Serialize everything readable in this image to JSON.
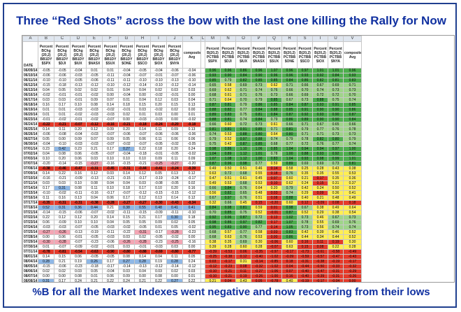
{
  "title": "Three “Red Shots” across the bow with the last one killing the Rally for Now",
  "footer": "%B for all the Market Indexes went negative and now recovering from their lows",
  "columns": [
    "A",
    "B",
    "C",
    "D",
    "E",
    "F",
    "G",
    "H",
    "I",
    "J",
    "K",
    "L",
    "M",
    "N",
    "O",
    "P",
    "Q",
    "R",
    "S",
    "T",
    "U",
    "V",
    "W",
    "X"
  ],
  "date_header": "DATE",
  "left_headers": [
    "Percent BChg (20,2) BB1DY $SPX",
    "Percent BChg (20,2) BB1DY $DJI",
    "Percent BChg (20,2) BB1DY $IUX",
    "Percent BChg (20,2) BB1DY $NASX",
    "Percent BChg (20,2) BB1DY $SUX",
    "Percent BChg (20,2) BB1DY $ONE",
    "Percent BChg (20,2) BB1DY $SCO",
    "Percent BChg (20,2) BB1DY $IOX",
    "Percent BChg (20,2) BB1DY $NYA"
  ],
  "left_avg_header": "composite Avg",
  "right_headers": [
    "Percent B(20,2) PCTBB $SPX",
    "Percent B(20,2) PCTBB $DJI",
    "Percent B(20,2) PCTBB $IUX",
    "Percent B(20,2) PCTBB $NASX",
    "Percent B(20,2) PCTBB $SUX",
    "Percent B(20,2) PCTBB $ONE",
    "Percent B(20,2) PCTBB $SCO",
    "Percent B(20,2) PCTBB $IOX",
    "Percent B(20,2) PCTBB $NYA"
  ],
  "right_avg_header": "composite Avg",
  "dates": [
    "06/09/14",
    "06/10/14",
    "06/11/14",
    "06/12/14",
    "06/13/14",
    "06/16/14",
    "06/17/14",
    "06/18/14",
    "06/19/14",
    "06/20/14",
    "06/23/14",
    "06/24/14",
    "06/25/14",
    "06/26/14",
    "06/27/14",
    "06/30/14",
    "07/01/14",
    "07/02/14",
    "07/03/14",
    "07/07/14",
    "07/08/14",
    "07/09/14",
    "07/10/14",
    "07/11/14",
    "07/14/14",
    "07/15/14",
    "07/16/14",
    "07/17/14",
    "07/18/14",
    "07/21/14",
    "07/22/14",
    "07/23/14",
    "07/24/14",
    "07/25/14",
    "07/28/14",
    "07/29/14",
    "07/30/14",
    "07/31/14",
    "08/01/14",
    "08/04/14",
    "08/05/14",
    "08/06/14",
    "08/07/14",
    "08/08/14"
  ],
  "colors": {
    "green": "#4cae4c",
    "lightgreen": "#9fd48a",
    "yellow": "#ffee55",
    "red": "#e53a2a",
    "pink": "#f4a6b4",
    "blue": "#8fb8e6",
    "darkred": "#c82020"
  },
  "left_values": [
    [
      "-0.05",
      "-0.05",
      "-0.04",
      "0.01",
      "0.01",
      "-0.04",
      "-0.05",
      "-0.04",
      "-0.06",
      "-0.04"
    ],
    [
      "-0.06",
      "-0.06",
      "-0.03",
      "-0.05",
      "-0.11",
      "-0.04",
      "-0.07",
      "-0.01",
      "-0.07",
      "-0.06"
    ],
    [
      "-0.10",
      "-0.10",
      "-0.05",
      "-0.06",
      "-0.11",
      "-0.11",
      "-0.10",
      "-0.10",
      "-0.13",
      "-0.10"
    ],
    [
      "-0.15",
      "-0.18",
      "-0.13",
      "-0.12",
      "-0.10",
      "-0.12",
      "-0.14",
      "-0.10",
      "-0.12",
      "-0.14"
    ],
    [
      "0.04",
      "0.05",
      "0.02",
      "0.02",
      "0.01",
      "0.04",
      "0.04",
      "0.02",
      "0.03",
      "0.03"
    ],
    [
      "-0.02",
      "-0.01",
      "-0.01",
      "-0.02",
      "0.00",
      "-0.04",
      "0.00",
      "-0.02",
      "-0.01",
      "0.00"
    ],
    [
      "0.03",
      "0.03",
      "-0.01",
      "0.09",
      "0.07",
      "0.01",
      "0.04",
      "0.12",
      "0.03",
      "0.04"
    ],
    [
      "0.16",
      "0.17",
      "0.10",
      "0.08",
      "0.14",
      "0.18",
      "0.15",
      "0.20",
      "0.15",
      "0.13"
    ],
    [
      "0.01",
      "0.01",
      "-0.03",
      "-0.03",
      "-0.02",
      "-0.01",
      "0.03",
      "-0.02",
      "0.02",
      "0.00"
    ],
    [
      "0.01",
      "0.01",
      "-0.02",
      "-0.03",
      "-0.03",
      "0.02",
      "0.01",
      "0.03",
      "0.00",
      "0.01"
    ],
    [
      "-0.01",
      "-0.02",
      "-0.01",
      "-0.02",
      "-0.07",
      "0.00",
      "-0.03",
      "-0.03",
      "0.00",
      "-0.02"
    ],
    [
      "-0.22",
      "-0.21",
      "-0.07",
      "-0.12",
      "-0.16",
      "-0.21",
      "-0.18",
      "-0.24",
      "-0.20",
      "-0.18"
    ],
    [
      "0.14",
      "0.11",
      "0.20",
      "0.12",
      "0.09",
      "0.20",
      "0.14",
      "0.11",
      "0.09",
      "0.13"
    ],
    [
      "-0.06",
      "-0.08",
      "-0.04",
      "-0.03",
      "-0.07",
      "-0.06",
      "-0.07",
      "-0.06",
      "-0.06",
      "-0.06"
    ],
    [
      "0.05",
      "0.00",
      "0.09",
      "0.07",
      "0.09",
      "0.05",
      "0.06",
      "0.11",
      "0.06",
      "0.06"
    ],
    [
      "-0.04",
      "-0.10",
      "-0.03",
      "-0.03",
      "-0.07",
      "-0.02",
      "-0.07",
      "-0.05",
      "-0.02",
      "-0.05"
    ],
    [
      "0.23",
      "0.42",
      "0.23",
      "0.21",
      "0.17",
      "0.27",
      "0.22",
      "0.18",
      "0.20",
      "0.24"
    ],
    [
      "0.04",
      "0.08",
      "0.06",
      "-0.05",
      "-0.07",
      "-0.04",
      "-0.18",
      "-0.01",
      "-0.05",
      "-0.02"
    ],
    [
      "0.10",
      "0.20",
      "0.06",
      "0.03",
      "0.10",
      "0.10",
      "0.10",
      "0.09",
      "0.11",
      "0.09"
    ],
    [
      "-0.20",
      "-0.14",
      "-0.15",
      "-0.27",
      "-0.16",
      "-0.15",
      "-0.21",
      "-0.25",
      "-0.27",
      "-0.20"
    ],
    [
      "-0.38",
      "-0.46",
      "-0.47",
      "-0.31",
      "-0.45",
      "-0.31",
      "-0.44",
      "-0.41",
      "-0.24",
      "-0.39"
    ],
    [
      "0.14",
      "0.22",
      "0.16",
      "0.12",
      "0.03",
      "0.14",
      "0.12",
      "0.05",
      "0.13",
      "0.12"
    ],
    [
      "-0.16",
      "-0.21",
      "-0.09",
      "-0.13",
      "-0.21",
      "-0.15",
      "-0.17",
      "-0.19",
      "-0.24",
      "-0.17"
    ],
    [
      "0.03",
      "0.03",
      "0.10",
      "0.08",
      "0.04",
      "0.04",
      "0.03",
      "-0.08",
      "-0.05",
      "0.02"
    ],
    [
      "0.17",
      "0.31",
      "0.08",
      "0.11",
      "0.10",
      "0.18",
      "0.17",
      "0.10",
      "0.20",
      "0.16"
    ],
    [
      "-0.10",
      "-0.02",
      "-0.11",
      "-0.16",
      "-0.17",
      "-0.07",
      "-0.12",
      "-0.15",
      "-0.15",
      "-0.12"
    ],
    [
      "0.11",
      "0.16",
      "0.13",
      "0.04",
      "0.06",
      "0.17",
      "0.12",
      "0.13",
      "0.14",
      "0.12"
    ],
    [
      "-0.35",
      "-0.31",
      "-0.31",
      "-0.38",
      "-0.28",
      "-0.27",
      "-0.27",
      "-0.30",
      "-0.43",
      "-0.34"
    ],
    [
      "0.52",
      "0.31",
      "0.36",
      "0.44",
      "0.21",
      "0.38",
      "0.55",
      "0.48",
      "0.41",
      "0.41"
    ],
    [
      "-0.14",
      "-0.15",
      "-0.06",
      "-0.07",
      "-0.02",
      "-0.11",
      "-0.15",
      "-0.09",
      "-0.11",
      "-0.10"
    ],
    [
      "0.22",
      "0.12",
      "0.12",
      "0.20",
      "0.14",
      "0.15",
      "0.21",
      "0.17",
      "0.30",
      "0.18"
    ],
    [
      "0.06",
      "-0.09",
      "0.10",
      "0.10",
      "0.04",
      "0.05",
      "0.05",
      "0.09",
      "0.02",
      "0.05"
    ],
    [
      "-0.03",
      "-0.03",
      "-0.07",
      "-0.05",
      "-0.03",
      "-0.02",
      "-0.05",
      "0.01",
      "0.05",
      "-0.02"
    ],
    [
      "-0.27",
      "-0.26",
      "-0.13",
      "-0.19",
      "-0.11",
      "-0.22",
      "-0.31",
      "-0.17",
      "-0.28",
      "-0.23"
    ],
    [
      "0.00",
      "0.06",
      "-0.01",
      "-0.05",
      "-0.03",
      "0.03",
      "0.02",
      "-0.05",
      "-0.02",
      "0.00"
    ],
    [
      "-0.30",
      "-0.28",
      "-0.07",
      "-0.23",
      "-0.06",
      "-0.26",
      "-0.28",
      "-0.23",
      "-0.25",
      "-0.16"
    ],
    [
      "0.01",
      "-0.07",
      "-0.09",
      "-0.02",
      "-0.01",
      "0.03",
      "-0.01",
      "-0.03",
      "0.03",
      "0.00"
    ],
    [
      "-0.78",
      "-0.81",
      "-0.54",
      "-0.63",
      "-0.90",
      "-0.80",
      "-0.88",
      "-0.69",
      "-0.80",
      "-0.77"
    ],
    [
      "0.14",
      "0.15",
      "0.06",
      "-0.05",
      "-0.05",
      "0.08",
      "0.14",
      "0.04",
      "0.11",
      "0.05"
    ],
    [
      "0.28",
      "0.21",
      "0.19",
      "0.26",
      "0.17",
      "0.27",
      "0.28",
      "0.19",
      "0.28",
      "0.24"
    ],
    [
      "-0.15",
      "-0.06",
      "-0.23",
      "-0.18",
      "-0.17",
      "-0.14",
      "-0.13",
      "-0.12",
      "-0.14",
      "-0.12"
    ],
    [
      "0.02",
      "0.02",
      "0.03",
      "0.05",
      "-0.04",
      "0.03",
      "0.04",
      "0.03",
      "0.02",
      "0.03"
    ],
    [
      "0.00",
      "0.00",
      "0.08",
      "0.01",
      "0.06",
      "0.09",
      "0.00",
      "0.08",
      "0.00",
      "0.01"
    ],
    [
      "0.31",
      "0.17",
      "0.24",
      "0.21",
      "0.22",
      "0.24",
      "0.21",
      "0.22",
      "0.27",
      "0.22"
    ]
  ],
  "right_values": [
    [
      "0.96",
      "0.96",
      "0.86",
      "0.96",
      "1.07",
      "0.96",
      "0.97",
      "1.01",
      "1.01",
      "0.96"
    ],
    [
      "0.93",
      "0.90",
      "0.84",
      "0.90",
      "0.96",
      "0.96",
      "0.93",
      "0.92",
      "0.84",
      "0.93"
    ],
    [
      "0.85",
      "0.79",
      "0.82",
      "0.85",
      "0.85",
      "0.84",
      "0.86",
      "0.82",
      "0.81",
      "0.83"
    ],
    [
      "0.65",
      "0.58",
      "0.69",
      "0.73",
      "0.62",
      "0.71",
      "0.66",
      "0.67",
      "0.69",
      "0.71"
    ],
    [
      "0.69",
      "0.62",
      "0.71",
      "0.74",
      "0.76",
      "0.66",
      "0.70",
      "0.74",
      "0.73",
      "0.73"
    ],
    [
      "0.68",
      "0.61",
      "0.71",
      "0.76",
      "0.73",
      "0.66",
      "0.69",
      "0.72",
      "0.72",
      "0.70"
    ],
    [
      "0.71",
      "0.64",
      "0.70",
      "0.79",
      "0.85",
      "0.67",
      "0.73",
      "0.88",
      "0.75",
      "0.74"
    ],
    [
      "0.87",
      "0.81",
      "0.79",
      "0.86",
      "0.85",
      "0.84",
      "0.87",
      "0.93",
      "0.91",
      "0.85"
    ],
    [
      "0.88",
      "0.82",
      "0.77",
      "0.84",
      "0.88",
      "0.85",
      "0.91",
      "0.90",
      "0.90",
      "0.86"
    ],
    [
      "0.89",
      "0.83",
      "0.75",
      "0.81",
      "0.84",
      "0.87",
      "0.92",
      "0.93",
      "0.90",
      "0.87"
    ],
    [
      "0.88",
      "0.81",
      "0.74",
      "0.84",
      "0.79",
      "0.86",
      "0.89",
      "0.90",
      "0.90",
      "0.84"
    ],
    [
      "0.66",
      "0.60",
      "0.72",
      "0.73",
      "0.61",
      "0.66",
      "0.71",
      "0.67",
      "0.65",
      "0.66"
    ],
    [
      "0.81",
      "0.81",
      "0.91",
      "0.85",
      "0.71",
      "0.81",
      "0.79",
      "0.77",
      "0.76",
      "0.78"
    ],
    [
      "0.74",
      "0.53",
      "0.88",
      "0.80",
      "0.64",
      "0.80",
      "0.71",
      "0.71",
      "0.73",
      "0.73"
    ],
    [
      "0.79",
      "0.52",
      "0.97",
      "0.88",
      "0.74",
      "0.79",
      "0.78",
      "0.82",
      "0.80",
      "0.79"
    ],
    [
      "0.75",
      "0.42",
      "0.87",
      "0.85",
      "0.68",
      "0.77",
      "0.72",
      "0.76",
      "0.77",
      "0.74"
    ],
    [
      "0.98",
      "0.86",
      "1.10",
      "1.06",
      "0.85",
      "1.04",
      "0.94",
      "0.94",
      "0.97",
      "1.00"
    ],
    [
      "1.04",
      "0.89",
      "1.12",
      "1.01",
      "0.78",
      "1.00",
      "0.88",
      "0.93",
      "0.92",
      "0.97"
    ],
    [
      "1.07",
      "1.08",
      "1.12",
      "1.00",
      "0.83",
      "1.04",
      "0.93",
      "0.98",
      "0.99",
      "1.01"
    ],
    [
      "0.87",
      "0.96",
      "0.98",
      "0.77",
      "0.59",
      "0.89",
      "0.69",
      "0.69",
      "0.73",
      "0.81"
    ],
    [
      "0.49",
      "0.50",
      "0.51",
      "0.46",
      "0.14",
      "0.58",
      "0.25",
      "0.28",
      "0.43",
      "0.38"
    ],
    [
      "0.63",
      "0.72",
      "0.68",
      "0.55",
      "0.18",
      "0.76",
      "0.35",
      "0.35",
      "0.55",
      "0.53"
    ],
    [
      "0.47",
      "0.51",
      "0.61",
      "0.45",
      "0.07",
      "0.60",
      "0.21",
      "0.17",
      "0.35",
      "0.36"
    ],
    [
      "0.49",
      "0.53",
      "0.68",
      "0.53",
      "0.10",
      "0.62",
      "0.24",
      "0.15",
      "0.31",
      "0.37"
    ],
    [
      "0.66",
      "0.84",
      "0.76",
      "0.64",
      "0.20",
      "0.79",
      "0.42",
      "0.24",
      "0.50",
      "0.52"
    ],
    [
      "0.56",
      "0.82",
      "0.65",
      "0.48",
      "0.03",
      "0.74",
      "0.29",
      "0.09",
      "0.36",
      "0.41"
    ],
    [
      "0.67",
      "0.97",
      "0.76",
      "0.51",
      "0.08",
      "0.88",
      "0.40",
      "0.21",
      "0.48",
      "0.49"
    ],
    [
      "0.32",
      "0.66",
      "0.45",
      "0.15",
      "-0.20",
      "0.60",
      "0.12",
      "-0.09",
      "0.08",
      "0.18"
    ],
    [
      "0.84",
      "0.98",
      "0.81",
      "0.59",
      "0.01",
      "0.98",
      "0.67",
      "0.38",
      "0.49",
      "0.64"
    ],
    [
      "0.70",
      "0.85",
      "0.75",
      "0.52",
      "-0.01",
      "0.87",
      "0.52",
      "0.29",
      "0.38",
      "0.54"
    ],
    [
      "0.92",
      "0.96",
      "0.87",
      "0.72",
      "0.13",
      "1.02",
      "0.73",
      "0.46",
      "0.67",
      "0.73"
    ],
    [
      "0.98",
      "0.86",
      "0.97",
      "0.82",
      "0.17",
      "1.07",
      "0.78",
      "0.55",
      "0.69",
      "0.76"
    ],
    [
      "0.95",
      "0.83",
      "0.90",
      "0.77",
      "0.14",
      "1.05",
      "0.73",
      "0.56",
      "0.74",
      "0.74"
    ],
    [
      "0.68",
      "0.57",
      "0.77",
      "0.58",
      "0.03",
      "0.83",
      "0.42",
      "0.39",
      "0.46",
      "0.52"
    ],
    [
      "0.68",
      "0.63",
      "0.76",
      "0.53",
      "0.00",
      "0.86",
      "0.44",
      "0.34",
      "0.44",
      "0.52"
    ],
    [
      "0.38",
      "0.35",
      "0.69",
      "0.30",
      "-0.06",
      "0.60",
      "0.16",
      "0.11",
      "0.19",
      "0.30"
    ],
    [
      "0.39",
      "0.28",
      "0.60",
      "0.28",
      "-0.07",
      "0.63",
      "0.15",
      "0.08",
      "0.22",
      "0.28"
    ],
    [
      "-0.39",
      "-0.53",
      "0.06",
      "-0.35",
      "-0.97",
      "-0.17",
      "-0.73",
      "-0.61",
      "-0.58",
      "-0.49"
    ],
    [
      "-0.25",
      "-0.38",
      "0.12",
      "-0.40",
      "-1.02",
      "-0.09",
      "-0.59",
      "-0.57",
      "-0.47",
      "-0.43"
    ],
    [
      "0.03",
      "-0.17",
      "0.31",
      "-0.14",
      "-0.85",
      "0.18",
      "-0.31",
      "-0.38",
      "-0.19",
      "-0.17"
    ],
    [
      "-0.12",
      "-0.23",
      "0.08",
      "-0.32",
      "-1.02",
      "0.04",
      "-0.44",
      "-0.50",
      "-0.33",
      "-0.32"
    ],
    [
      "-0.10",
      "-0.21",
      "0.11",
      "-0.27",
      "-1.06",
      "0.07",
      "-0.40",
      "-0.47",
      "-0.31",
      "-0.29"
    ],
    [
      "-0.10",
      "-0.21",
      "0.19",
      "-0.26",
      "-1.00",
      "0.16",
      "-0.40",
      "-0.39",
      "-0.31",
      "-0.26"
    ],
    [
      "0.21",
      "0.04",
      "0.43",
      "0.05",
      "-0.78",
      "0.40",
      "-0.19",
      "-0.17",
      "-0.04",
      "0.00"
    ]
  ],
  "red_rows": [
    11,
    20,
    27,
    37
  ]
}
